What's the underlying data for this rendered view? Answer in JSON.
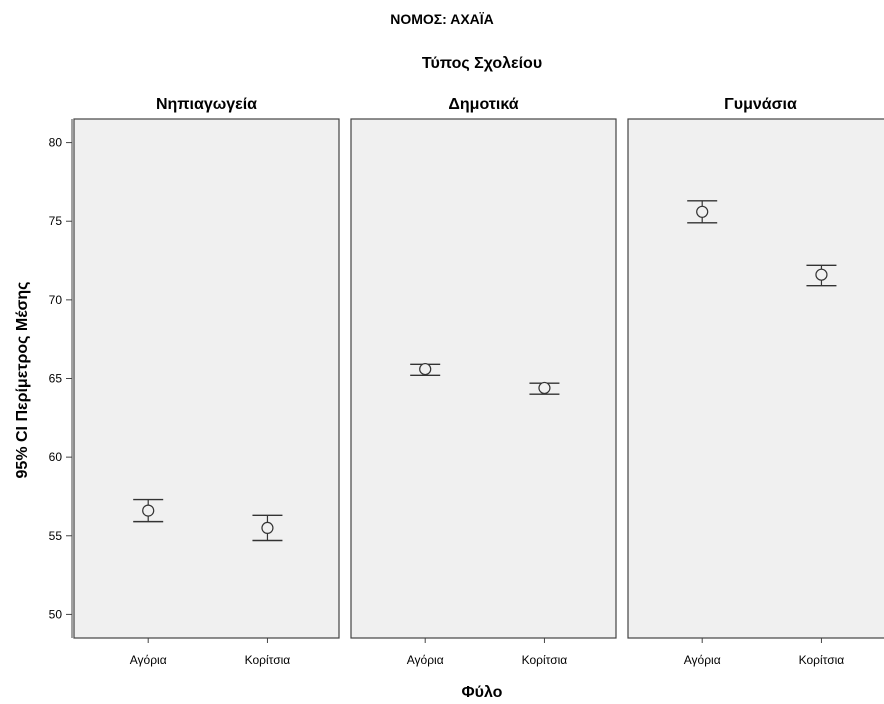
{
  "chart_data": {
    "type": "scatter",
    "subtype": "error-bar",
    "title": "ΝΟΜΟΣ: ΑΧΑΪΑ",
    "panel_title": "Τύπος Σχολείου",
    "xlabel": "Φύλο",
    "ylabel": "95% CI Περίμετρος Μέσης",
    "ylim": [
      48.5,
      81.5
    ],
    "yticks": [
      50,
      55,
      60,
      65,
      70,
      75,
      80
    ],
    "categories": [
      "Αγόρια",
      "Κορίτσια"
    ],
    "panels": [
      {
        "name": "Νηπιαγωγεία",
        "points": [
          {
            "category": "Αγόρια",
            "mean": 56.6,
            "lower": 55.9,
            "upper": 57.3
          },
          {
            "category": "Κορίτσια",
            "mean": 55.5,
            "lower": 54.7,
            "upper": 56.3
          }
        ]
      },
      {
        "name": "Δημοτικά",
        "points": [
          {
            "category": "Αγόρια",
            "mean": 65.6,
            "lower": 65.2,
            "upper": 65.9
          },
          {
            "category": "Κορίτσια",
            "mean": 64.4,
            "lower": 64.0,
            "upper": 64.7
          }
        ]
      },
      {
        "name": "Γυμνάσια",
        "points": [
          {
            "category": "Αγόρια",
            "mean": 75.6,
            "lower": 74.9,
            "upper": 76.3
          },
          {
            "category": "Κορίτσια",
            "mean": 71.6,
            "lower": 70.9,
            "upper": 72.2
          }
        ]
      }
    ],
    "grid": false,
    "colors": {
      "panel_bg": "#f0f0f0",
      "panel_border": "#444444",
      "marks": "#333333"
    }
  }
}
